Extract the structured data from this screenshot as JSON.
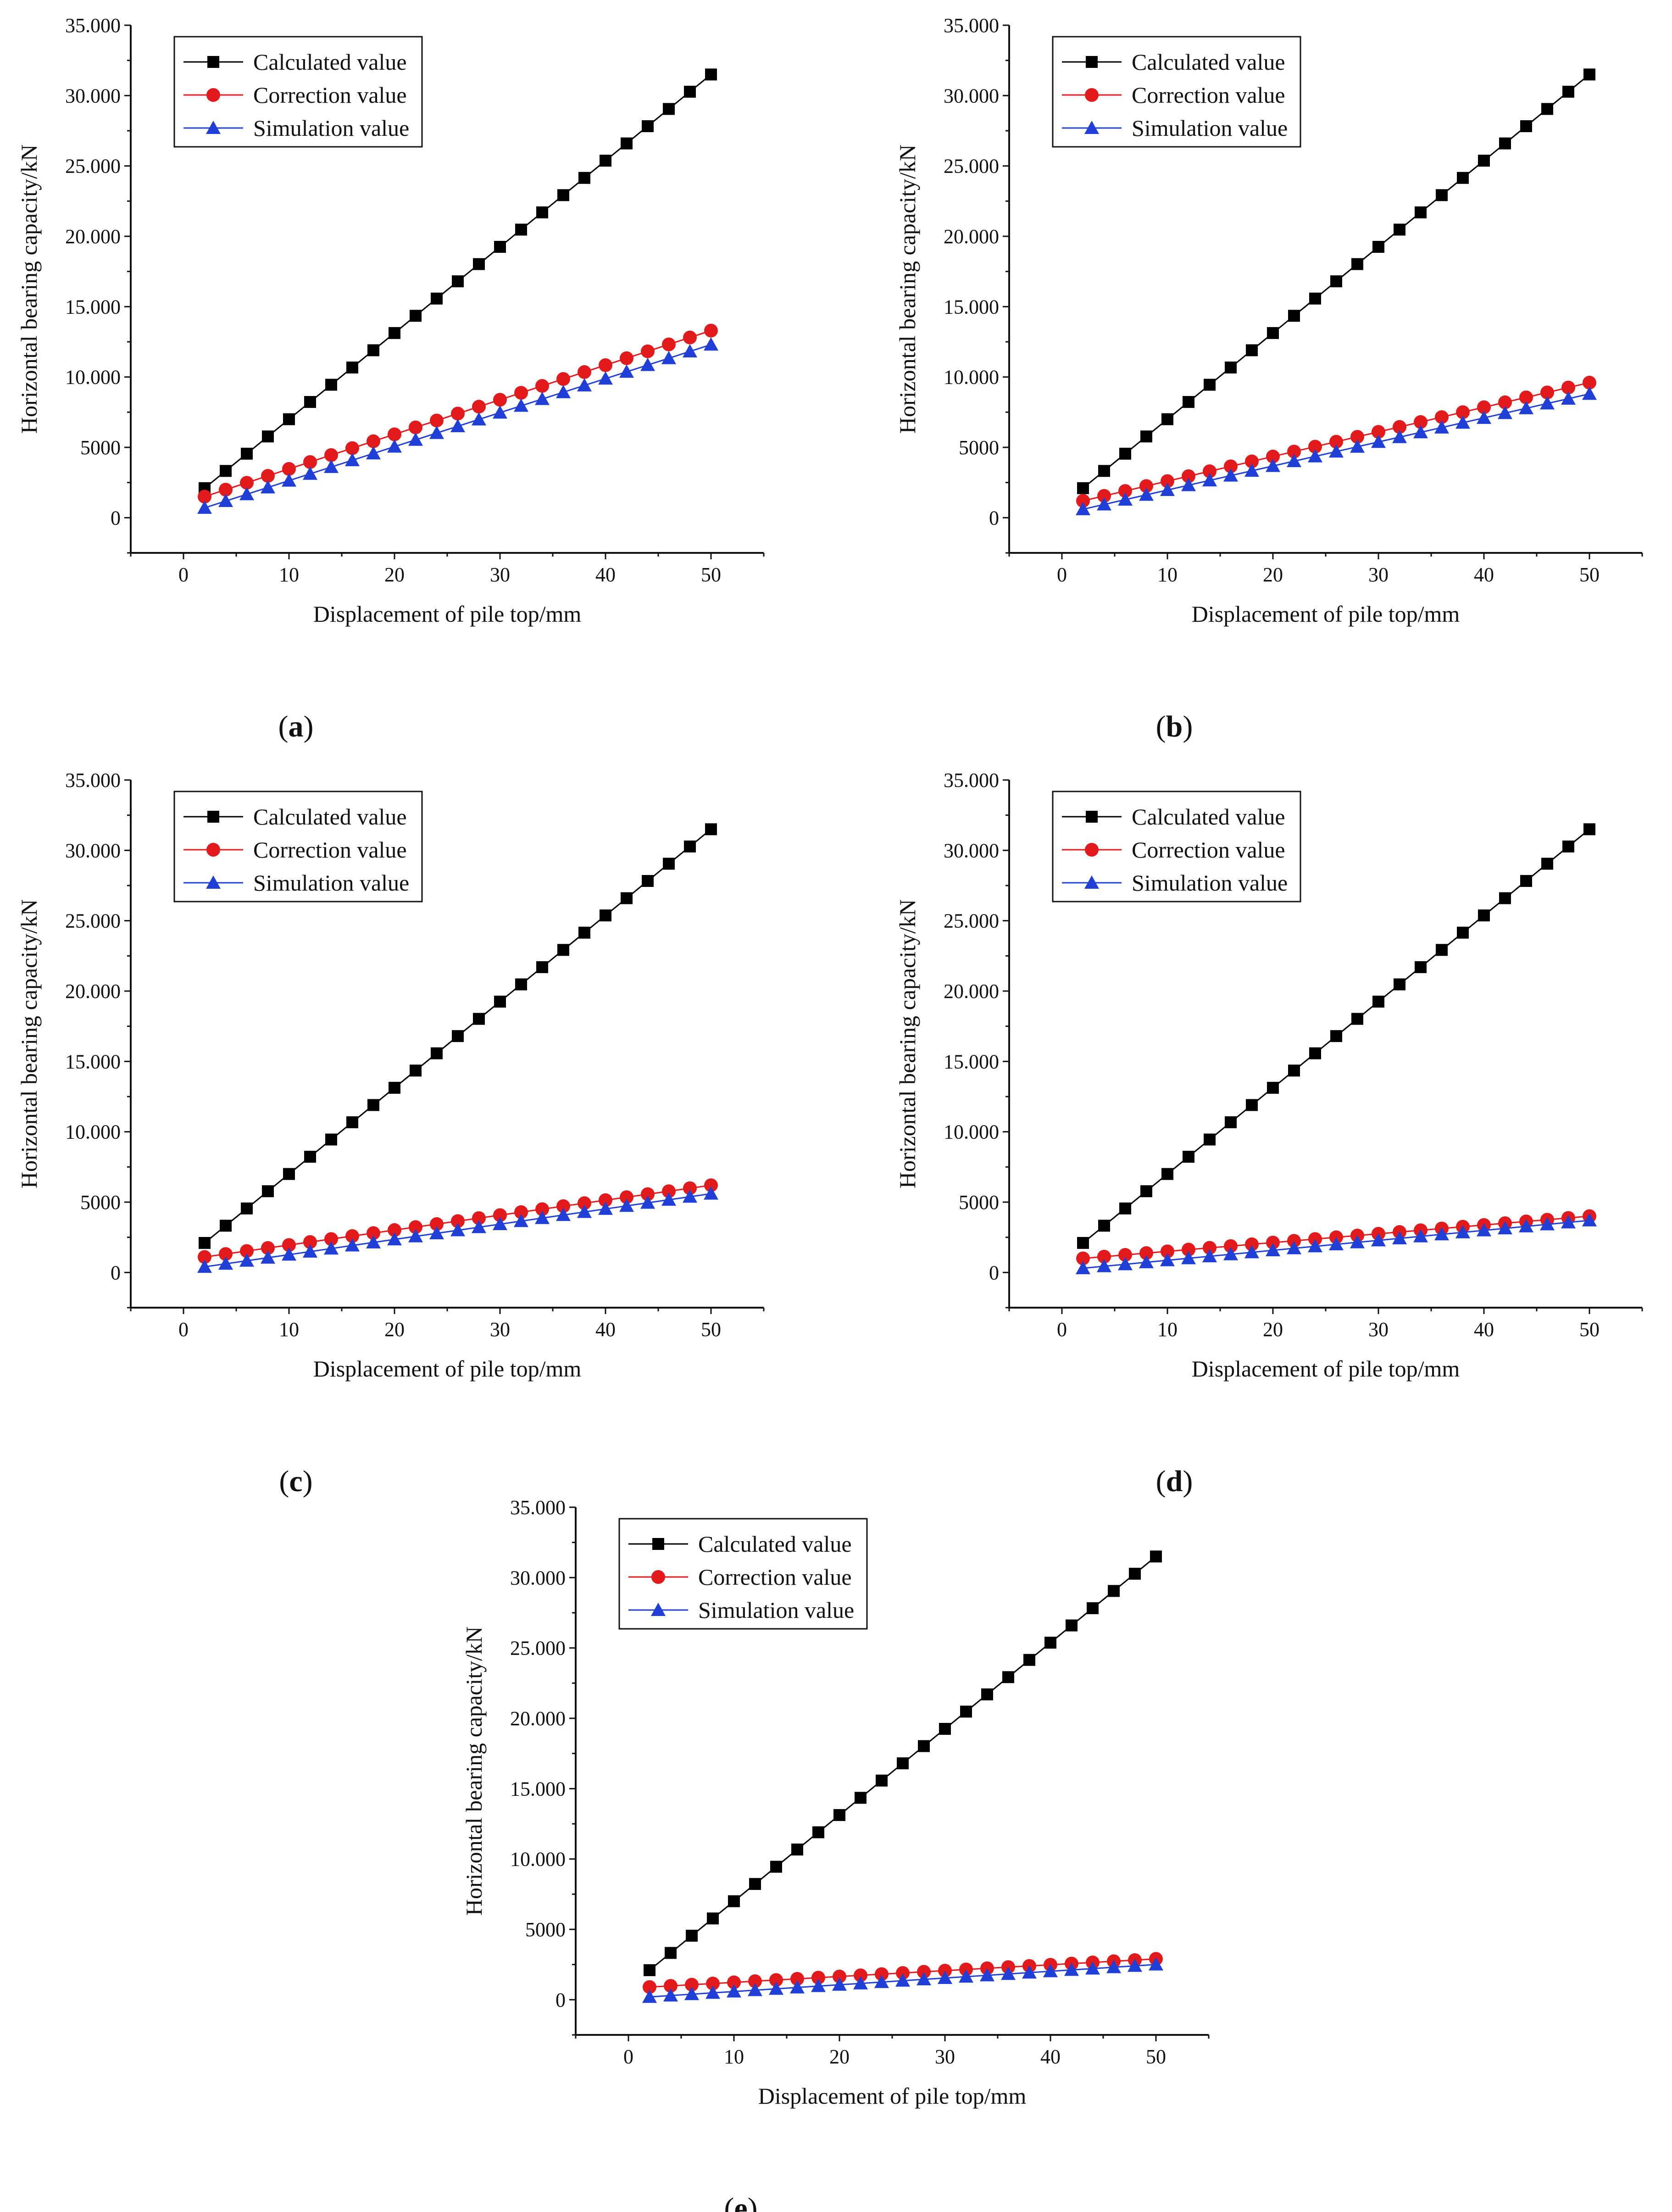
{
  "figure": {
    "series_names": [
      "Calculated value",
      "Correction value",
      "Simulation value"
    ],
    "series_colors": [
      "#000000",
      "#e31a1c",
      "#1f3fd6"
    ],
    "marker_shapes": [
      "square",
      "circle",
      "triangle"
    ]
  },
  "chart_data": [
    {
      "type": "line",
      "panel_label": "a",
      "xlabel": "Displacement of pile top/mm",
      "ylabel": "Horizontal bearing capacity/kN",
      "xlim": [
        -5,
        55
      ],
      "ylim": [
        -2500,
        35000
      ],
      "x_ticks": [
        0,
        10,
        20,
        30,
        40,
        50
      ],
      "x_tick_labels": [
        "0",
        "10",
        "20",
        "30",
        "40",
        "50"
      ],
      "y_ticks": [
        0,
        5000,
        10000,
        15000,
        20000,
        25000,
        30000,
        35000
      ],
      "y_tick_labels": [
        "0",
        "5000",
        "10.000",
        "15.000",
        "20.000",
        "25.000",
        "30.000",
        "35.000"
      ],
      "legend_position": "top-left",
      "x": [
        2,
        4,
        6,
        8,
        10,
        12,
        14,
        16,
        18,
        20,
        22,
        24,
        26,
        28,
        30,
        32,
        34,
        36,
        38,
        40,
        42,
        44,
        46,
        48,
        50
      ],
      "series": [
        {
          "name": "Calculated value",
          "values": [
            2100,
            3325,
            4550,
            5775,
            7000,
            8225,
            9450,
            10675,
            11900,
            13125,
            14350,
            15575,
            16800,
            18025,
            19250,
            20475,
            21700,
            22925,
            24150,
            25375,
            26600,
            27825,
            29050,
            30275,
            31500
          ]
        },
        {
          "name": "Correction value",
          "values": [
            1500,
            1992,
            2483,
            2975,
            3467,
            3958,
            4450,
            4942,
            5433,
            5925,
            6417,
            6908,
            7400,
            7892,
            8383,
            8875,
            9367,
            9858,
            10350,
            10842,
            11333,
            11825,
            12317,
            12808,
            13300
          ]
        },
        {
          "name": "Simulation value",
          "values": [
            700,
            1183,
            1667,
            2150,
            2633,
            3117,
            3600,
            4083,
            4567,
            5050,
            5533,
            6017,
            6500,
            6983,
            7467,
            7950,
            8433,
            8917,
            9400,
            9883,
            10367,
            10850,
            11333,
            11817,
            12300
          ]
        }
      ]
    },
    {
      "type": "line",
      "panel_label": "b",
      "xlabel": "Displacement of pile top/mm",
      "ylabel": "Horizontal bearing capacity/kN",
      "xlim": [
        -5,
        55
      ],
      "ylim": [
        -2500,
        35000
      ],
      "x_ticks": [
        0,
        10,
        20,
        30,
        40,
        50
      ],
      "x_tick_labels": [
        "0",
        "10",
        "20",
        "30",
        "40",
        "50"
      ],
      "y_ticks": [
        0,
        5000,
        10000,
        15000,
        20000,
        25000,
        30000,
        35000
      ],
      "y_tick_labels": [
        "0",
        "5000",
        "10.000",
        "15.000",
        "20.000",
        "25.000",
        "30.000",
        "35.000"
      ],
      "legend_position": "top-left",
      "x": [
        2,
        4,
        6,
        8,
        10,
        12,
        14,
        16,
        18,
        20,
        22,
        24,
        26,
        28,
        30,
        32,
        34,
        36,
        38,
        40,
        42,
        44,
        46,
        48,
        50
      ],
      "series": [
        {
          "name": "Calculated value",
          "values": [
            2100,
            3325,
            4550,
            5775,
            7000,
            8225,
            9450,
            10675,
            11900,
            13125,
            14350,
            15575,
            16800,
            18025,
            19250,
            20475,
            21700,
            22925,
            24150,
            25375,
            26600,
            27825,
            29050,
            30275,
            31500
          ]
        },
        {
          "name": "Correction value",
          "values": [
            1200,
            1550,
            1900,
            2250,
            2600,
            2950,
            3300,
            3650,
            4000,
            4350,
            4700,
            5050,
            5400,
            5750,
            6100,
            6450,
            6800,
            7150,
            7500,
            7850,
            8200,
            8550,
            8900,
            9250,
            9600
          ]
        },
        {
          "name": "Simulation value",
          "values": [
            600,
            942,
            1283,
            1625,
            1967,
            2308,
            2650,
            2992,
            3333,
            3675,
            4017,
            4358,
            4700,
            5042,
            5383,
            5725,
            6067,
            6408,
            6750,
            7092,
            7433,
            7775,
            8117,
            8458,
            8800
          ]
        }
      ]
    },
    {
      "type": "line",
      "panel_label": "c",
      "xlabel": "Displacement of pile top/mm",
      "ylabel": "Horizontal bearing capacity/kN",
      "xlim": [
        -5,
        55
      ],
      "ylim": [
        -2500,
        35000
      ],
      "x_ticks": [
        0,
        10,
        20,
        30,
        40,
        50
      ],
      "x_tick_labels": [
        "0",
        "10",
        "20",
        "30",
        "40",
        "50"
      ],
      "y_ticks": [
        0,
        5000,
        10000,
        15000,
        20000,
        25000,
        30000,
        35000
      ],
      "y_tick_labels": [
        "0",
        "5000",
        "10.000",
        "15.000",
        "20.000",
        "25.000",
        "30.000",
        "35.000"
      ],
      "legend_position": "top-left",
      "x": [
        2,
        4,
        6,
        8,
        10,
        12,
        14,
        16,
        18,
        20,
        22,
        24,
        26,
        28,
        30,
        32,
        34,
        36,
        38,
        40,
        42,
        44,
        46,
        48,
        50
      ],
      "series": [
        {
          "name": "Calculated value",
          "values": [
            2100,
            3325,
            4550,
            5775,
            7000,
            8225,
            9450,
            10675,
            11900,
            13125,
            14350,
            15575,
            16800,
            18025,
            19250,
            20475,
            21700,
            22925,
            24150,
            25375,
            26600,
            27825,
            29050,
            30275,
            31500
          ]
        },
        {
          "name": "Correction value",
          "values": [
            1100,
            1313,
            1525,
            1738,
            1950,
            2163,
            2375,
            2588,
            2800,
            3013,
            3225,
            3438,
            3650,
            3863,
            4075,
            4288,
            4500,
            4713,
            4925,
            5138,
            5350,
            5563,
            5775,
            5988,
            6200
          ]
        },
        {
          "name": "Simulation value",
          "values": [
            400,
            617,
            833,
            1050,
            1267,
            1483,
            1700,
            1917,
            2133,
            2350,
            2567,
            2783,
            3000,
            3217,
            3433,
            3650,
            3867,
            4083,
            4300,
            4517,
            4733,
            4950,
            5167,
            5383,
            5600
          ]
        }
      ]
    },
    {
      "type": "line",
      "panel_label": "d",
      "xlabel": "Displacement of pile top/mm",
      "ylabel": "Horizontal bearing capacity/kN",
      "xlim": [
        -5,
        55
      ],
      "ylim": [
        -2500,
        35000
      ],
      "x_ticks": [
        0,
        10,
        20,
        30,
        40,
        50
      ],
      "x_tick_labels": [
        "0",
        "10",
        "20",
        "30",
        "40",
        "50"
      ],
      "y_ticks": [
        0,
        5000,
        10000,
        15000,
        20000,
        25000,
        30000,
        35000
      ],
      "y_tick_labels": [
        "0",
        "5000",
        "10.000",
        "15.000",
        "20.000",
        "25.000",
        "30.000",
        "35.000"
      ],
      "legend_position": "top-left",
      "x": [
        2,
        4,
        6,
        8,
        10,
        12,
        14,
        16,
        18,
        20,
        22,
        24,
        26,
        28,
        30,
        32,
        34,
        36,
        38,
        40,
        42,
        44,
        46,
        48,
        50
      ],
      "series": [
        {
          "name": "Calculated value",
          "values": [
            2100,
            3325,
            4550,
            5775,
            7000,
            8225,
            9450,
            10675,
            11900,
            13125,
            14350,
            15575,
            16800,
            18025,
            19250,
            20475,
            21700,
            22925,
            24150,
            25375,
            26600,
            27825,
            29050,
            30275,
            31500
          ]
        },
        {
          "name": "Correction value",
          "values": [
            1000,
            1125,
            1250,
            1375,
            1500,
            1625,
            1750,
            1875,
            2000,
            2125,
            2250,
            2375,
            2500,
            2625,
            2750,
            2875,
            3000,
            3125,
            3250,
            3375,
            3500,
            3625,
            3750,
            3875,
            4000
          ]
        },
        {
          "name": "Simulation value",
          "values": [
            300,
            442,
            583,
            725,
            867,
            1008,
            1150,
            1292,
            1433,
            1575,
            1717,
            1858,
            2000,
            2142,
            2283,
            2425,
            2567,
            2708,
            2850,
            2992,
            3133,
            3275,
            3417,
            3558,
            3700
          ]
        }
      ]
    },
    {
      "type": "line",
      "panel_label": "e",
      "xlabel": "Displacement of pile top/mm",
      "ylabel": "Horizontal bearing capacity/kN",
      "xlim": [
        -5,
        55
      ],
      "ylim": [
        -2500,
        35000
      ],
      "x_ticks": [
        0,
        10,
        20,
        30,
        40,
        50
      ],
      "x_tick_labels": [
        "0",
        "10",
        "20",
        "30",
        "40",
        "50"
      ],
      "y_ticks": [
        0,
        5000,
        10000,
        15000,
        20000,
        25000,
        30000,
        35000
      ],
      "y_tick_labels": [
        "0",
        "5000",
        "10.000",
        "15.000",
        "20.000",
        "25.000",
        "30.000",
        "35.000"
      ],
      "legend_position": "top-left",
      "x": [
        2,
        4,
        6,
        8,
        10,
        12,
        14,
        16,
        18,
        20,
        22,
        24,
        26,
        28,
        30,
        32,
        34,
        36,
        38,
        40,
        42,
        44,
        46,
        48,
        50
      ],
      "series": [
        {
          "name": "Calculated value",
          "values": [
            2100,
            3325,
            4550,
            5775,
            7000,
            8225,
            9450,
            10675,
            11900,
            13125,
            14350,
            15575,
            16800,
            18025,
            19250,
            20475,
            21700,
            22925,
            24150,
            25375,
            26600,
            27825,
            29050,
            30275,
            31500
          ]
        },
        {
          "name": "Correction value",
          "values": [
            900,
            983,
            1067,
            1150,
            1233,
            1317,
            1400,
            1483,
            1567,
            1650,
            1733,
            1817,
            1900,
            1983,
            2067,
            2150,
            2233,
            2317,
            2400,
            2483,
            2567,
            2650,
            2733,
            2817,
            2900
          ]
        },
        {
          "name": "Simulation value",
          "values": [
            200,
            296,
            392,
            488,
            583,
            679,
            775,
            871,
            967,
            1063,
            1158,
            1254,
            1350,
            1446,
            1542,
            1638,
            1733,
            1829,
            1925,
            2021,
            2117,
            2213,
            2308,
            2404,
            2500
          ]
        }
      ]
    }
  ]
}
